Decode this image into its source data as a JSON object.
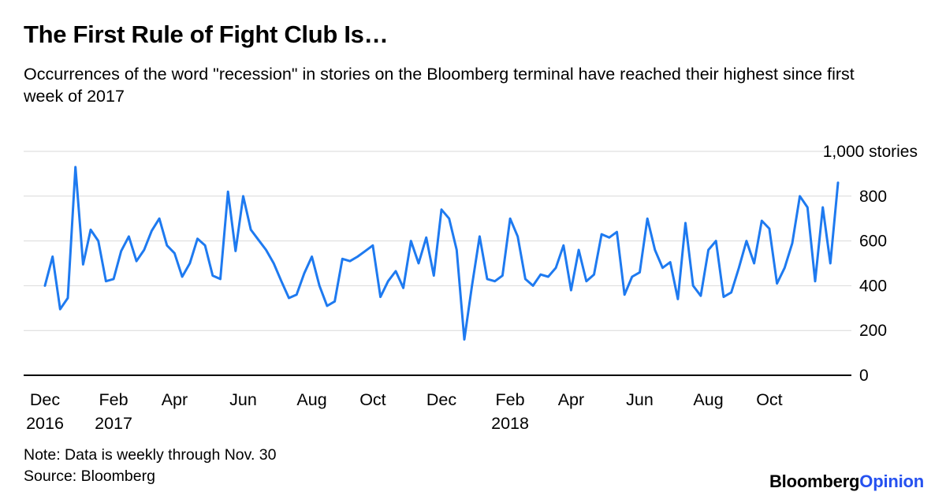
{
  "header": {
    "title": "The First Rule of Fight Club Is…",
    "subtitle": "Occurrences of the word \"recession\" in stories on the Bloomberg terminal have reached their highest since first week of 2017"
  },
  "colors": {
    "line": "#1e7af0",
    "grid": "#d9d9d9",
    "axis": "#000000",
    "text": "#000000",
    "logo_opinion": "#2551f0"
  },
  "chart_data": {
    "type": "line",
    "title": "The First Rule of Fight Club Is…",
    "series_name": "Weekly occurrences of \"recession\" in Bloomberg terminal stories",
    "x_unit": "week",
    "x_range": [
      "Dec 2016",
      "Nov 30, 2018"
    ],
    "ylim": [
      0,
      1000
    ],
    "ylabel": "1,000 stories",
    "grid": "horizontal",
    "legend": "none",
    "values": [
      400,
      530,
      295,
      345,
      930,
      495,
      650,
      600,
      420,
      430,
      555,
      620,
      510,
      560,
      645,
      700,
      580,
      545,
      440,
      500,
      610,
      580,
      445,
      430,
      820,
      555,
      800,
      650,
      605,
      560,
      500,
      420,
      345,
      360,
      455,
      530,
      400,
      310,
      330,
      520,
      510,
      530,
      555,
      580,
      350,
      420,
      465,
      390,
      600,
      500,
      615,
      445,
      740,
      700,
      560,
      160,
      400,
      620,
      430,
      420,
      445,
      700,
      620,
      430,
      400,
      450,
      440,
      480,
      580,
      380,
      560,
      420,
      450,
      630,
      615,
      640,
      360,
      440,
      460,
      700,
      560,
      480,
      505,
      340,
      680,
      400,
      355,
      560,
      600,
      350,
      370,
      480,
      600,
      500,
      690,
      655,
      410,
      480,
      590,
      800,
      750,
      420,
      750,
      500,
      860
    ],
    "y_ticks": [
      {
        "value": 0,
        "label": "0"
      },
      {
        "value": 200,
        "label": "200"
      },
      {
        "value": 400,
        "label": "400"
      },
      {
        "value": 600,
        "label": "600"
      },
      {
        "value": 800,
        "label": "800"
      },
      {
        "value": 1000,
        "label": "1,000 stories"
      }
    ],
    "x_ticks": [
      {
        "week": 0,
        "label": "Dec",
        "year": "2016"
      },
      {
        "week": 9,
        "label": "Feb",
        "year": "2017"
      },
      {
        "week": 17,
        "label": "Apr"
      },
      {
        "week": 26,
        "label": "Jun"
      },
      {
        "week": 35,
        "label": "Aug"
      },
      {
        "week": 43,
        "label": "Oct"
      },
      {
        "week": 52,
        "label": "Dec"
      },
      {
        "week": 61,
        "label": "Feb",
        "year": "2018"
      },
      {
        "week": 69,
        "label": "Apr"
      },
      {
        "week": 78,
        "label": "Jun"
      },
      {
        "week": 87,
        "label": "Aug"
      },
      {
        "week": 95,
        "label": "Oct"
      }
    ]
  },
  "footer": {
    "note": "Note: Data is weekly through Nov. 30",
    "source": "Source: Bloomberg",
    "logo": {
      "part1": "Bloomberg",
      "part2": "Opinion"
    }
  }
}
